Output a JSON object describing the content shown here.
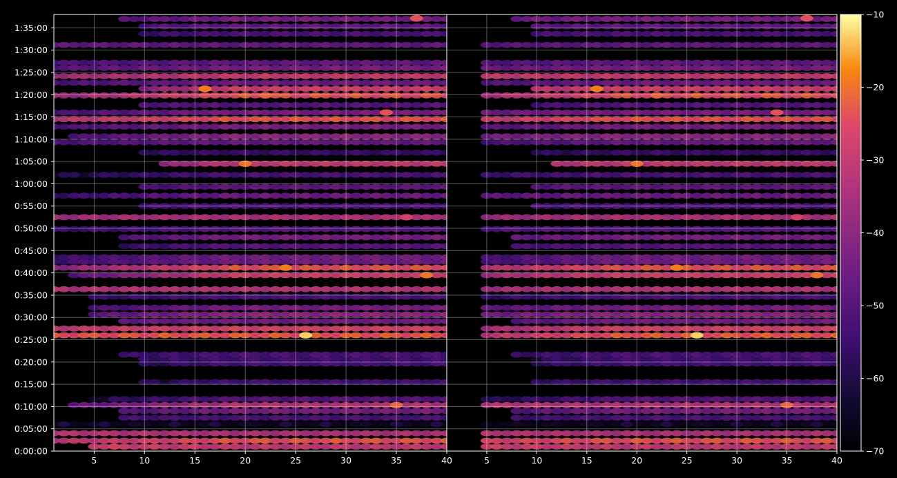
{
  "chart_data": {
    "type": "heatmap",
    "colormap": "inferno",
    "background_color": "#000000",
    "grid": true,
    "panels": [
      {
        "name": "",
        "xlim": [
          1,
          40
        ],
        "ylim": [
          0,
          5880
        ],
        "xticks": [
          5,
          10,
          15,
          20,
          25,
          30,
          35,
          40
        ],
        "xtick_labels": [
          "5",
          "10",
          "15",
          "20",
          "25",
          "30",
          "35",
          "40"
        ]
      },
      {
        "name": "",
        "xlim": [
          1,
          40
        ],
        "ylim": [
          0,
          5880
        ],
        "xticks": [
          5,
          10,
          15,
          20,
          25,
          30,
          35,
          40
        ],
        "xtick_labels": [
          "5",
          "10",
          "15",
          "20",
          "25",
          "30",
          "35",
          "40"
        ]
      }
    ],
    "yticks_seconds": [
      0,
      300,
      600,
      900,
      1200,
      1500,
      1800,
      2100,
      2400,
      2700,
      3000,
      3300,
      3600,
      3900,
      4200,
      4500,
      4800,
      5100,
      5400,
      5700
    ],
    "ytick_labels": [
      "0:00:00",
      "0:05:00",
      "0:10:00",
      "0:15:00",
      "0:20:00",
      "0:25:00",
      "0:30:00",
      "0:35:00",
      "0:40:00",
      "0:45:00",
      "0:50:00",
      "0:55:00",
      "1:00:00",
      "1:05:00",
      "1:10:00",
      "1:15:00",
      "1:20:00",
      "1:25:00",
      "1:30:00",
      "1:35:00"
    ],
    "colorbar": {
      "vmin": -70,
      "vmax": -10,
      "ticks": [
        -70,
        -60,
        -50,
        -40,
        -30,
        -20,
        -10
      ],
      "tick_labels": [
        "−70",
        "−60",
        "−50",
        "−40",
        "−30",
        "−20",
        "−10"
      ]
    },
    "bands": [
      {
        "t": 60,
        "v": -30,
        "left_v": -26,
        "right_v": -27,
        "c1": 5,
        "c2": 40
      },
      {
        "t": 140,
        "v": -24,
        "left_v": -32,
        "right_v": -28,
        "c1": 1,
        "c2": 40
      },
      {
        "t": 240,
        "v": -34,
        "left_v": -32,
        "right_v": -32,
        "c1": 1,
        "c2": 40
      },
      {
        "t": 360,
        "v": -62,
        "left_v": -62,
        "right_v": -64,
        "c1": 1,
        "c2": 40
      },
      {
        "t": 450,
        "v": -52,
        "left_v": -55,
        "right_v": -56,
        "c1": 8,
        "c2": 40
      },
      {
        "t": 540,
        "v": -44,
        "left_v": -55,
        "right_v": -54,
        "c1": 8,
        "c2": 40
      },
      {
        "t": 620,
        "v": -33,
        "left_v": -50,
        "right_v": -32,
        "c1": 3,
        "c2": 40
      },
      {
        "t": 700,
        "v": -50,
        "left_v": -62,
        "right_v": -62,
        "c1": 5,
        "c2": 40
      },
      {
        "t": 930,
        "v": -54,
        "left_v": -65,
        "right_v": -60,
        "c1": 10,
        "c2": 40
      },
      {
        "t": 1180,
        "v": -53,
        "left_v": -65,
        "right_v": -62,
        "c1": 10,
        "c2": 40
      },
      {
        "t": 1240,
        "v": -54,
        "left_v": -58,
        "right_v": -62,
        "c1": 10,
        "c2": 40
      },
      {
        "t": 1300,
        "v": -52,
        "left_v": -58,
        "right_v": -58,
        "c1": 8,
        "c2": 40
      },
      {
        "t": 1560,
        "v": -23,
        "left_v": -24,
        "right_v": -34,
        "c1": 1,
        "c2": 40
      },
      {
        "t": 1650,
        "v": -27,
        "left_v": -30,
        "right_v": -38,
        "c1": 1,
        "c2": 40
      },
      {
        "t": 1750,
        "v": -45,
        "left_v": -48,
        "right_v": -52,
        "c1": 8,
        "c2": 40
      },
      {
        "t": 1840,
        "v": -40,
        "left_v": -52,
        "right_v": -47,
        "c1": 5,
        "c2": 40
      },
      {
        "t": 1930,
        "v": -44,
        "left_v": -55,
        "right_v": -50,
        "c1": 5,
        "c2": 40
      },
      {
        "t": 2080,
        "v": -52,
        "left_v": -58,
        "right_v": -58,
        "c1": 5,
        "c2": 40
      },
      {
        "t": 2180,
        "v": -33,
        "left_v": -33,
        "right_v": -36,
        "c1": 1,
        "c2": 40
      },
      {
        "t": 2370,
        "v": -28,
        "left_v": -52,
        "right_v": -38,
        "c1": 3,
        "c2": 40
      },
      {
        "t": 2470,
        "v": -24,
        "left_v": -40,
        "right_v": -36,
        "c1": 1,
        "c2": 40
      },
      {
        "t": 2550,
        "v": -45,
        "left_v": -54,
        "right_v": -56,
        "c1": 1,
        "c2": 40
      },
      {
        "t": 2610,
        "v": -45,
        "left_v": -55,
        "right_v": -56,
        "c1": 1,
        "c2": 40
      },
      {
        "t": 2760,
        "v": -50,
        "left_v": -60,
        "right_v": -55,
        "c1": 8,
        "c2": 40
      },
      {
        "t": 2880,
        "v": -44,
        "left_v": -56,
        "right_v": -50,
        "c1": 8,
        "c2": 40
      },
      {
        "t": 2990,
        "v": -50,
        "left_v": -56,
        "right_v": -52,
        "c1": 1,
        "c2": 40
      },
      {
        "t": 3150,
        "v": -34,
        "left_v": -36,
        "right_v": -38,
        "c1": 1,
        "c2": 40
      },
      {
        "t": 3300,
        "v": -52,
        "left_v": -56,
        "right_v": -55,
        "c1": 10,
        "c2": 40
      },
      {
        "t": 3440,
        "v": -46,
        "left_v": -56,
        "right_v": -50,
        "c1": 1,
        "c2": 40
      },
      {
        "t": 3560,
        "v": -48,
        "left_v": -58,
        "right_v": -52,
        "c1": 10,
        "c2": 40
      },
      {
        "t": 3720,
        "v": -52,
        "left_v": -60,
        "right_v": -56,
        "c1": 1,
        "c2": 40
      },
      {
        "t": 3870,
        "v": -30,
        "left_v": -54,
        "right_v": -36,
        "c1": 12,
        "c2": 40
      },
      {
        "t": 4020,
        "v": -56,
        "left_v": -58,
        "right_v": -60,
        "c1": 10,
        "c2": 40
      },
      {
        "t": 4160,
        "v": -47,
        "left_v": -52,
        "right_v": -54,
        "c1": 1,
        "c2": 40
      },
      {
        "t": 4240,
        "v": -40,
        "left_v": -54,
        "right_v": -46,
        "c1": 3,
        "c2": 40
      },
      {
        "t": 4370,
        "v": -44,
        "left_v": -52,
        "right_v": -52,
        "c1": 1,
        "c2": 40
      },
      {
        "t": 4470,
        "v": -24,
        "left_v": -32,
        "right_v": -32,
        "c1": 1,
        "c2": 40
      },
      {
        "t": 4560,
        "v": -44,
        "left_v": -52,
        "right_v": -46,
        "c1": 1,
        "c2": 40
      },
      {
        "t": 4660,
        "v": -50,
        "left_v": -52,
        "right_v": -56,
        "c1": 10,
        "c2": 40
      },
      {
        "t": 4790,
        "v": -24,
        "left_v": -38,
        "right_v": -38,
        "c1": 1,
        "c2": 40
      },
      {
        "t": 4880,
        "v": -28,
        "left_v": -55,
        "right_v": -36,
        "c1": 10,
        "c2": 40
      },
      {
        "t": 4960,
        "v": -46,
        "left_v": -52,
        "right_v": -52,
        "c1": 1,
        "c2": 40
      },
      {
        "t": 5050,
        "v": -30,
        "left_v": -36,
        "right_v": -30,
        "c1": 1,
        "c2": 40
      },
      {
        "t": 5160,
        "v": -44,
        "left_v": -50,
        "right_v": -48,
        "c1": 1,
        "c2": 40
      },
      {
        "t": 5230,
        "v": -48,
        "left_v": -52,
        "right_v": -52,
        "c1": 1,
        "c2": 40
      },
      {
        "t": 5470,
        "v": -48,
        "left_v": -48,
        "right_v": -50,
        "c1": 1,
        "c2": 40
      },
      {
        "t": 5620,
        "v": -52,
        "left_v": -60,
        "right_v": -54,
        "c1": 10,
        "c2": 40
      },
      {
        "t": 5720,
        "v": -48,
        "left_v": -56,
        "right_v": -52,
        "c1": 10,
        "c2": 40
      },
      {
        "t": 5820,
        "v": -44,
        "left_v": -54,
        "right_v": -46,
        "c1": 8,
        "c2": 40
      }
    ],
    "hotspots": [
      {
        "x": 26,
        "t": 1560,
        "v": -13
      },
      {
        "x": 24,
        "t": 2470,
        "v": -19
      },
      {
        "x": 20,
        "t": 3870,
        "v": -20
      },
      {
        "x": 16,
        "t": 4880,
        "v": -19
      },
      {
        "x": 22,
        "t": 4790,
        "v": -22
      },
      {
        "x": 37,
        "t": 5830,
        "v": -24
      },
      {
        "x": 35,
        "t": 620,
        "v": -22
      },
      {
        "x": 38,
        "t": 2370,
        "v": -20
      },
      {
        "x": 36,
        "t": 3150,
        "v": -28
      },
      {
        "x": 34,
        "t": 4560,
        "v": -24
      }
    ]
  }
}
